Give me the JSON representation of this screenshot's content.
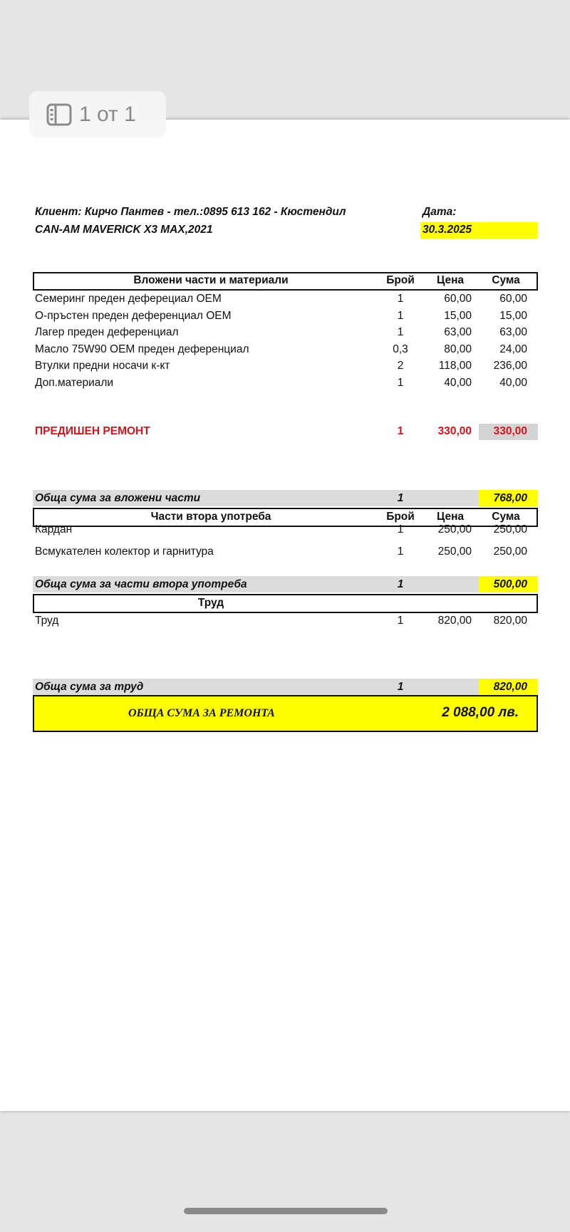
{
  "viewer": {
    "page_indicator": "1 от 1",
    "icon": "sidebar-panel-icon"
  },
  "header": {
    "client": "Клиент: Кирчо Пантев - тел.:0895 613 162 - Кюстендил",
    "vehicle": "CAN-AM MAVERICK X3 MAX,2021",
    "date_label": "Дата:",
    "date": "30.3.2025"
  },
  "columns": {
    "qty": "Брой",
    "price": "Цена",
    "sum": "Сума"
  },
  "parts": {
    "title": "Вложени части и материали",
    "rows": [
      {
        "name": "Семеринг  преден деферециал ОЕМ",
        "qty": "1",
        "price": "60,00",
        "sum": "60,00"
      },
      {
        "name": "О-пръстен преден деференциал ОЕМ",
        "qty": "1",
        "price": "15,00",
        "sum": "15,00"
      },
      {
        "name": "Лагер преден деференциал",
        "qty": "1",
        "price": "63,00",
        "sum": "63,00"
      },
      {
        "name": "Масло 75W90 OEM преден деференциал",
        "qty": "0,3",
        "price": "80,00",
        "sum": "24,00"
      },
      {
        "name": "Втулки предни носачи к-кт",
        "qty": "2",
        "price": "118,00",
        "sum": "236,00"
      },
      {
        "name": "Доп.материали",
        "qty": "1",
        "price": "40,00",
        "sum": "40,00"
      }
    ],
    "previous": {
      "name": "ПРЕДИШЕН РЕМОНТ",
      "qty": "1",
      "price": "330,00",
      "sum": "330,00"
    },
    "total_label": "Обща сума за вложени части",
    "total_qty": "1",
    "total": "768,00"
  },
  "used": {
    "title": "Части втора употреба",
    "rows": [
      {
        "name": "Кардан",
        "qty": "1",
        "price": "250,00",
        "sum": "250,00"
      },
      {
        "name": "Всмукателен колектор и гарнитура",
        "qty": "1",
        "price": "250,00",
        "sum": "250,00"
      }
    ],
    "total_label": "Обща сума за  части  втора употреба",
    "total_qty": "1",
    "total": "500,00"
  },
  "labor": {
    "title": "Труд",
    "rows": [
      {
        "name": "Труд",
        "qty": "1",
        "price": "820,00",
        "sum": "820,00"
      }
    ],
    "total_label": "Обща сума за труд",
    "total_qty": "1",
    "total": "820,00"
  },
  "grand": {
    "label": "ОБЩА СУМА  ЗА РЕМОНТА",
    "value": "2 088,00 лв."
  },
  "colors": {
    "highlight": "#ffff00",
    "subtotal_bg": "#dcdcdc",
    "previous_repair": "#d4141c"
  }
}
